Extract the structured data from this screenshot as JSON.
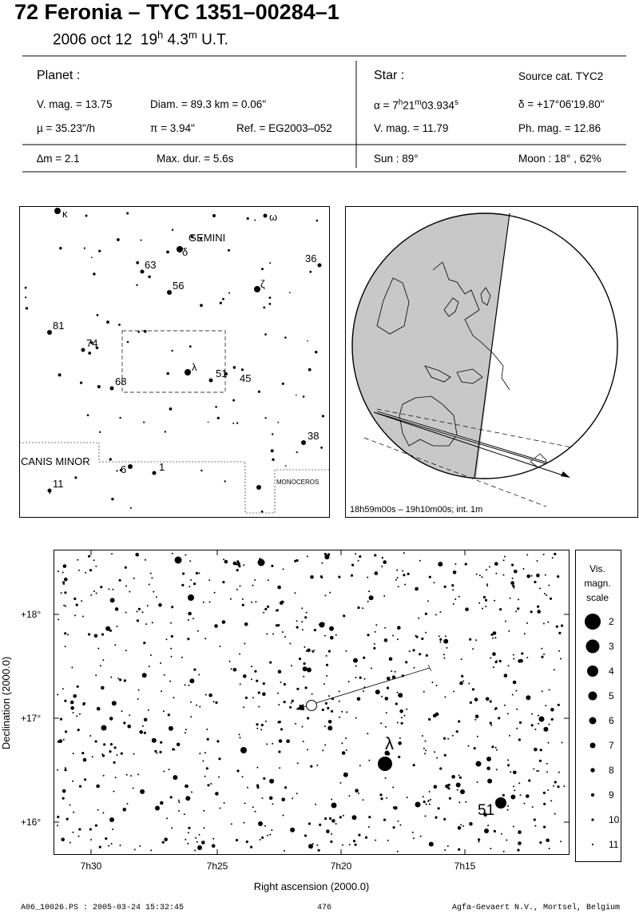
{
  "header": {
    "title": "72 Feronia  –  TYC 1351–00284–1",
    "date": "2006 oct 12",
    "time_h": "19",
    "time_h_sup": "h",
    "time_m": "4.3",
    "time_m_sup": "m",
    "time_ut": "U.T."
  },
  "planet": {
    "heading": "Planet :",
    "vmag": "V. mag. = 13.75",
    "diam": "Diam. = 89.3 km = 0.06\"",
    "mu": "µ =  35.23\"/h",
    "pi": "π =  3.94\"",
    "ref": "Ref. = EG2003–052",
    "dm": "∆m = 2.1",
    "maxdur": "Max. dur. = 5.6s"
  },
  "star": {
    "heading": "Star :",
    "source": "Source cat.  TYC2",
    "ra_prefix": "α = 7",
    "ra_h": "h",
    "ra_min": "21",
    "ra_m": "m",
    "ra_sec": "03.934",
    "ra_s": "s",
    "dec": "δ = +17°06'19.80\"",
    "vmag": "V. mag. = 11.79",
    "phmag": "Ph. mag. = 12.86",
    "sun": "Sun :  89°",
    "moon": "Moon :  18° , 62%"
  },
  "finder": {
    "constellations": [
      "GEMINI",
      "CANIS MINOR",
      "MONOCEROS"
    ],
    "star_labels": [
      "κ",
      "ω",
      "63",
      "δ",
      "36",
      "56",
      "ζ",
      "81",
      "74",
      "λ",
      "51",
      "45",
      "68",
      "38",
      "6",
      "1",
      "11"
    ]
  },
  "globe": {
    "caption": "18h59m00s – 19h10m00s; int.  1m"
  },
  "detail": {
    "yticks": [
      "+18°",
      "+17°",
      "+16°"
    ],
    "xticks": [
      "7h30",
      "7h25",
      "7h20",
      "7h15"
    ],
    "ylabel": "Declination (2000.0)",
    "xlabel": "Right ascension (2000.0)",
    "star_labels": [
      "λ",
      "51"
    ]
  },
  "scale": {
    "title": [
      "Vis.",
      "magn.",
      "scale"
    ],
    "magnitudes": [
      "2",
      "3",
      "4",
      "5",
      "6",
      "7",
      "8",
      "9",
      "10",
      "11"
    ]
  },
  "footer": {
    "left": "A06_10026.PS : 2005-03-24 15:32:45",
    "center": "476",
    "right": "Agfa-Gevaert N.V., Mortsel, Belgium"
  }
}
